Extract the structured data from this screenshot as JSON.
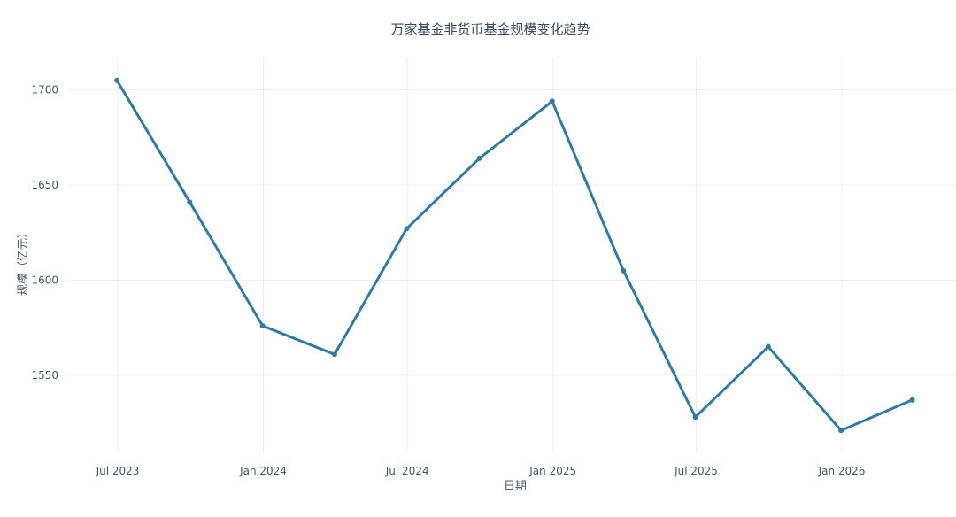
{
  "chart_data": {
    "type": "line",
    "title": "万家基金非货币基金规模变化趋势",
    "xlabel": "日期",
    "ylabel": "规模（亿元）",
    "x_ticks": [
      "Jul 2023",
      "Jan 2024",
      "Jul 2024",
      "Jan 2025",
      "Jul 2025",
      "Jan 2026"
    ],
    "y_ticks": [
      1550,
      1600,
      1650,
      1700
    ],
    "ylim": [
      1509,
      1717
    ],
    "grid": true,
    "line_color": "#2e7ca3",
    "x": [
      "2023-06-30",
      "2023-09-30",
      "2023-12-31",
      "2024-03-31",
      "2024-06-30",
      "2024-09-30",
      "2024-12-31",
      "2025-03-31",
      "2025-06-30",
      "2025-09-30",
      "2025-12-31",
      "2026-03-31"
    ],
    "values": [
      1705,
      1641,
      1576,
      1561,
      1627,
      1664,
      1694,
      1605,
      1528,
      1565,
      1521,
      1537
    ]
  }
}
